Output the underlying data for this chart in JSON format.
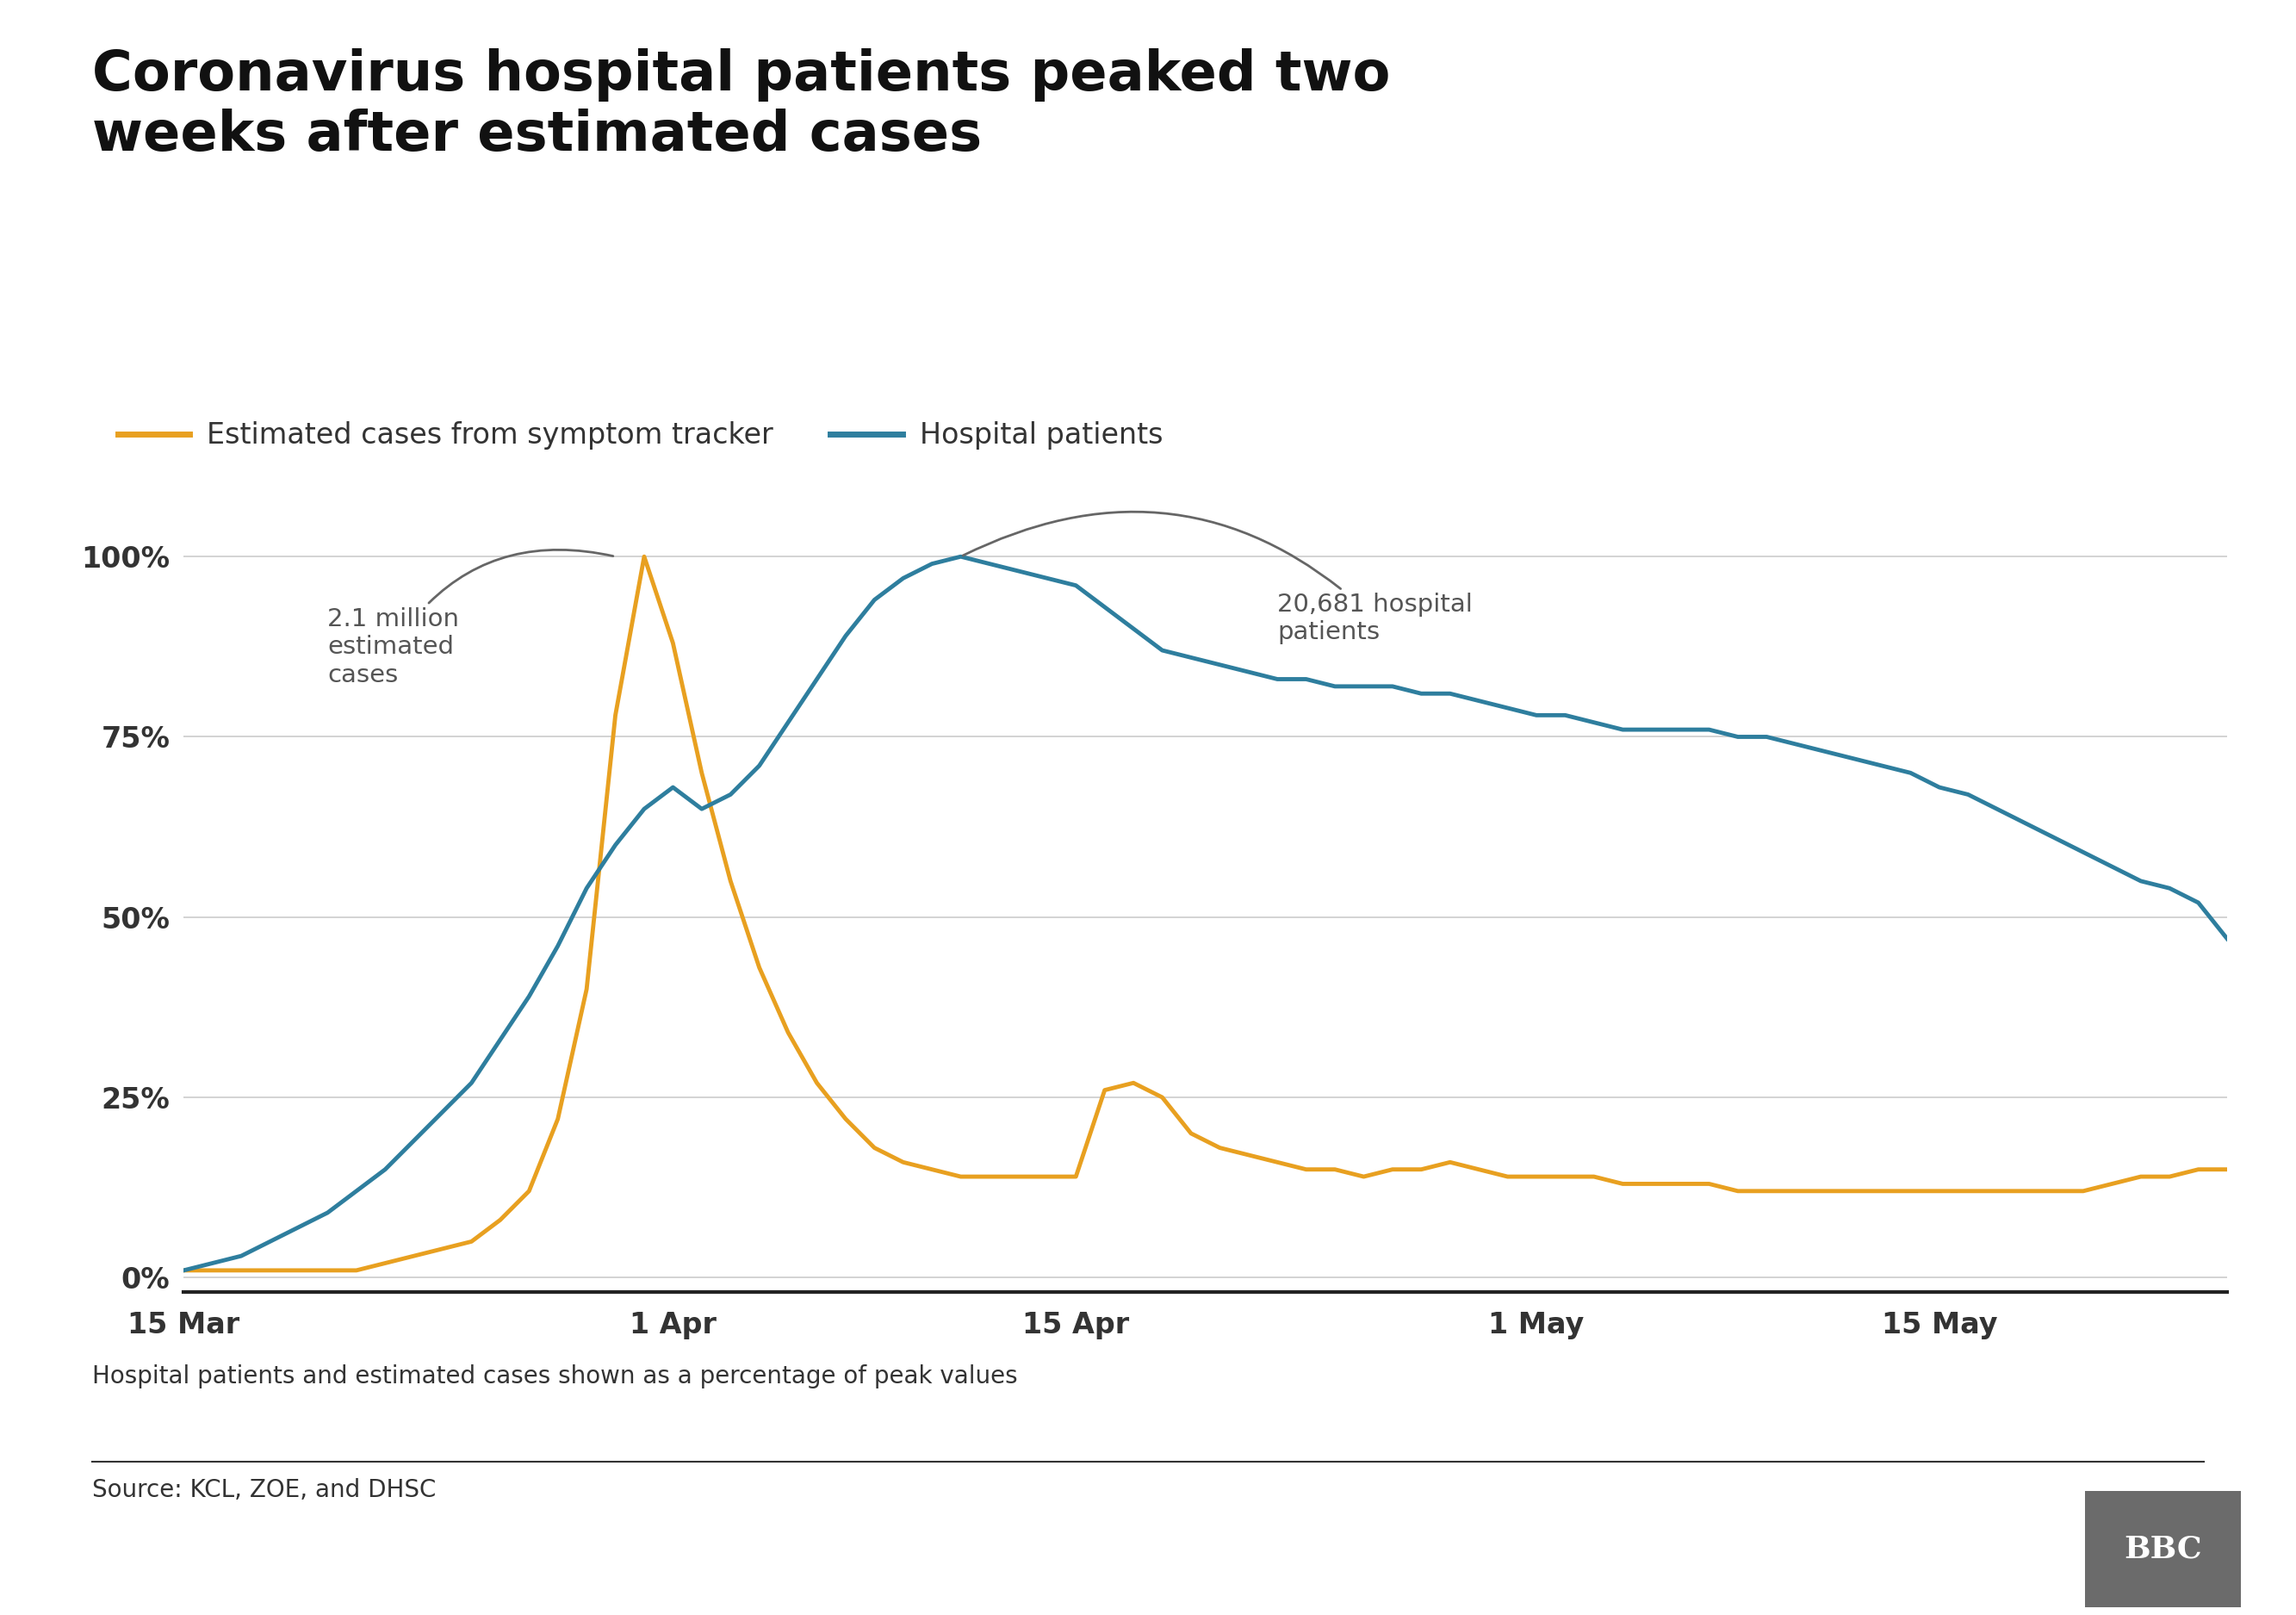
{
  "title": "Coronavirus hospital patients peaked two\nweeks after estimated cases",
  "legend_items": [
    {
      "label": "Estimated cases from symptom tracker",
      "color": "#E8A020"
    },
    {
      "label": "Hospital patients",
      "color": "#2E7E9E"
    }
  ],
  "subtitle": "Hospital patients and estimated cases shown as a percentage of peak values",
  "source": "Source: KCL, ZOE, and DHSC",
  "background_color": "#ffffff",
  "title_fontsize": 46,
  "legend_fontsize": 24,
  "axis_label_fontsize": 24,
  "annotation_fontsize": 21,
  "yticks": [
    0,
    25,
    50,
    75,
    100
  ],
  "ytick_labels": [
    "0%",
    "25%",
    "50%",
    "75%",
    "100%"
  ],
  "xtick_labels": [
    "15 Mar",
    "1 Apr",
    "15 Apr",
    "1 May",
    "15 May"
  ],
  "orange_color": "#E8A020",
  "blue_color": "#2E7E9E",
  "cases_annotation": "2.1 million\nestimated\ncases",
  "patients_annotation": "20,681 hospital\npatients",
  "orange_data": {
    "days": [
      0,
      1,
      2,
      3,
      4,
      5,
      6,
      7,
      8,
      9,
      10,
      11,
      12,
      13,
      14,
      15,
      16,
      17,
      18,
      19,
      20,
      21,
      22,
      23,
      24,
      25,
      26,
      27,
      28,
      29,
      30,
      31,
      32,
      33,
      34,
      35,
      36,
      37,
      38,
      39,
      40,
      41,
      42,
      43,
      44,
      45,
      46,
      47,
      48,
      49,
      50,
      51,
      52,
      53,
      54,
      55,
      56,
      57,
      58,
      59,
      60,
      61,
      62,
      63,
      64,
      65,
      66,
      67,
      68,
      69,
      70,
      71
    ],
    "values": [
      1,
      1,
      1,
      1,
      1,
      1,
      1,
      2,
      3,
      4,
      5,
      8,
      12,
      22,
      40,
      78,
      100,
      88,
      70,
      55,
      43,
      34,
      27,
      22,
      18,
      16,
      15,
      14,
      14,
      14,
      14,
      14,
      26,
      27,
      25,
      20,
      18,
      17,
      16,
      15,
      15,
      14,
      15,
      15,
      16,
      15,
      14,
      14,
      14,
      14,
      13,
      13,
      13,
      13,
      12,
      12,
      12,
      12,
      12,
      12,
      12,
      12,
      12,
      12,
      12,
      12,
      12,
      13,
      14,
      14,
      15,
      15
    ]
  },
  "blue_data": {
    "days": [
      0,
      1,
      2,
      3,
      4,
      5,
      6,
      7,
      8,
      9,
      10,
      11,
      12,
      13,
      14,
      15,
      16,
      17,
      18,
      19,
      20,
      21,
      22,
      23,
      24,
      25,
      26,
      27,
      28,
      29,
      30,
      31,
      32,
      33,
      34,
      35,
      36,
      37,
      38,
      39,
      40,
      41,
      42,
      43,
      44,
      45,
      46,
      47,
      48,
      49,
      50,
      51,
      52,
      53,
      54,
      55,
      56,
      57,
      58,
      59,
      60,
      61,
      62,
      63,
      64,
      65,
      66,
      67,
      68,
      69,
      70,
      71
    ],
    "values": [
      1,
      2,
      3,
      5,
      7,
      9,
      12,
      15,
      19,
      23,
      27,
      33,
      39,
      46,
      54,
      60,
      65,
      68,
      65,
      67,
      71,
      77,
      83,
      89,
      94,
      97,
      99,
      100,
      99,
      98,
      97,
      96,
      93,
      90,
      87,
      86,
      85,
      84,
      83,
      83,
      82,
      82,
      82,
      81,
      81,
      80,
      79,
      78,
      78,
      77,
      76,
      76,
      76,
      76,
      75,
      75,
      74,
      73,
      72,
      71,
      70,
      68,
      67,
      65,
      63,
      61,
      59,
      57,
      55,
      54,
      52,
      47
    ]
  },
  "x_ticks_days": [
    0,
    17,
    31,
    47,
    61
  ]
}
